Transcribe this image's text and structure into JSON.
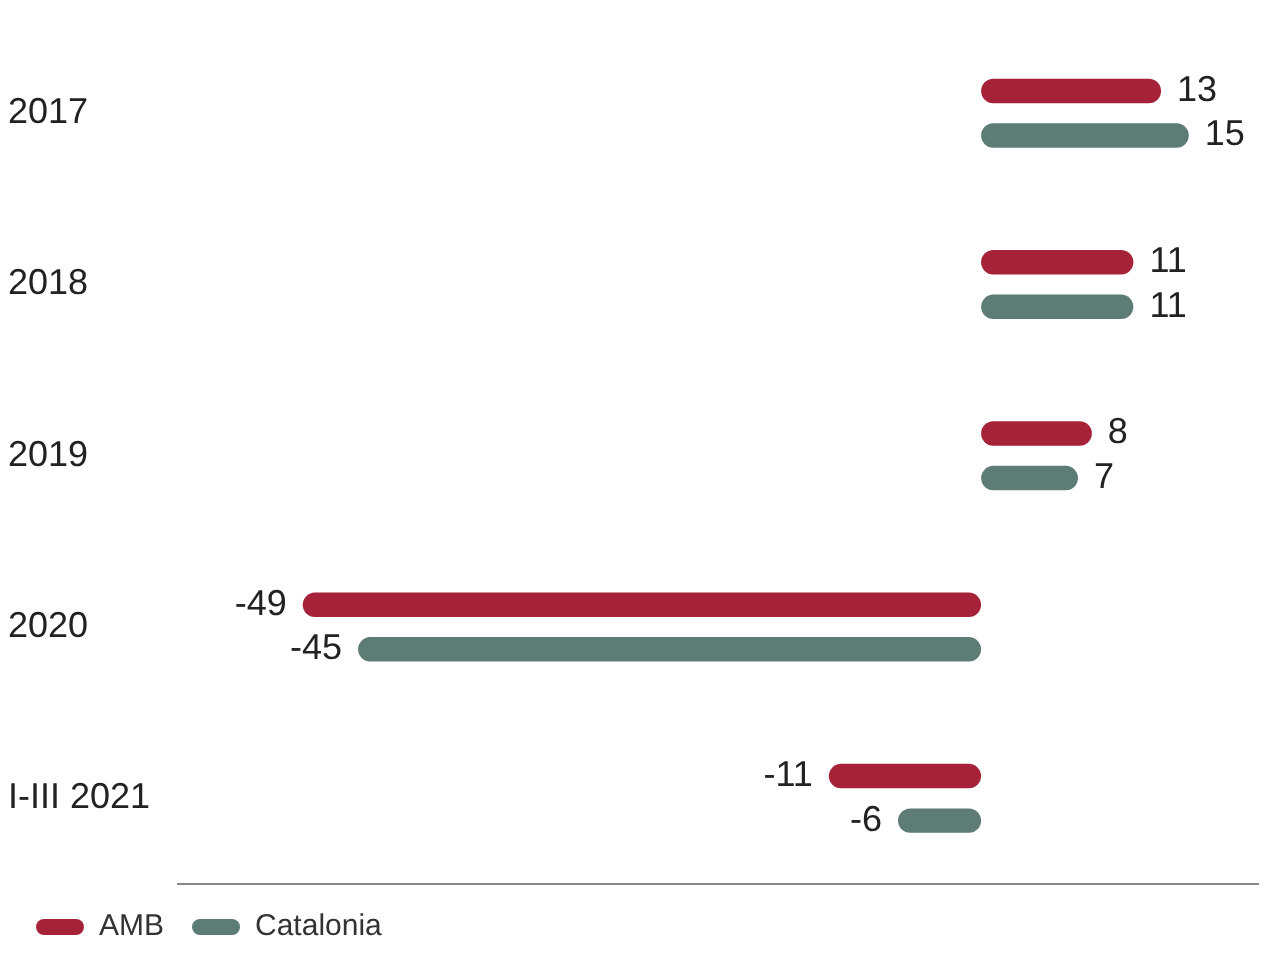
{
  "chart_data": {
    "type": "bar",
    "orientation": "horizontal",
    "categories": [
      "2017",
      "2018",
      "2019",
      "2020",
      "I-III 2021"
    ],
    "series": [
      {
        "name": "AMB",
        "color": "#a52238",
        "values": [
          13,
          11,
          8,
          -49,
          -11
        ]
      },
      {
        "name": "Catalonia",
        "color": "#5e7c76",
        "values": [
          15,
          11,
          7,
          -45,
          -6
        ]
      }
    ],
    "xlim": [
      -58,
      20
    ],
    "tick_labels": "y",
    "data_labels": true,
    "grid": false,
    "legend": "bottom left"
  }
}
